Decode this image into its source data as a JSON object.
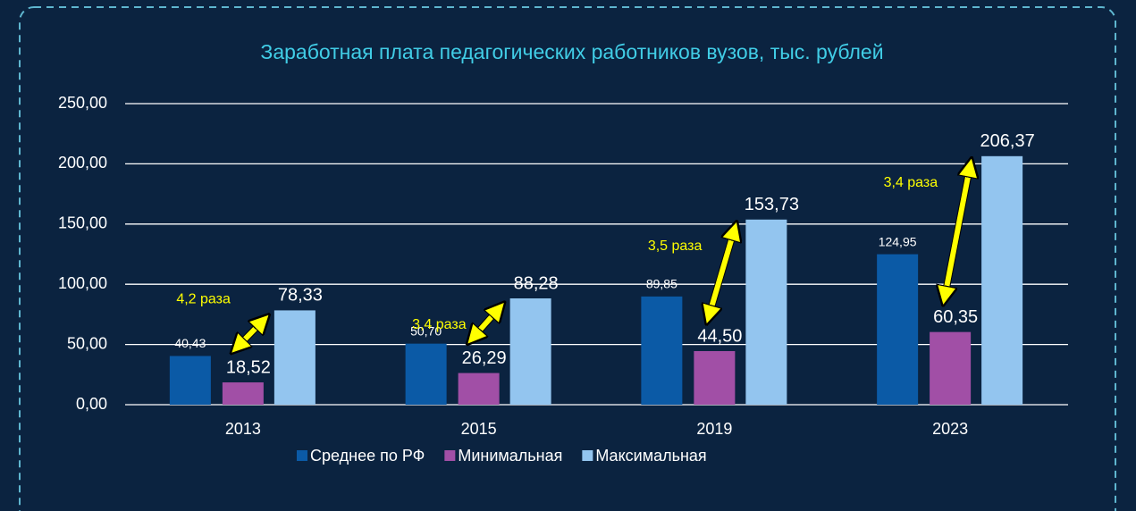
{
  "chart_data": {
    "type": "bar",
    "title": "Заработная плата педагогических работников вузов, тыс. рублей",
    "categories": [
      "2013",
      "2015",
      "2019",
      "2023"
    ],
    "series": [
      {
        "name": "Среднее по РФ",
        "color": "#0b5aa6",
        "values": [
          40.43,
          50.7,
          89.85,
          124.95
        ],
        "value_labels": [
          "40,43",
          "50,70",
          "89,85",
          "124,95"
        ]
      },
      {
        "name": "Минимальная",
        "color": "#a14fa6",
        "values": [
          18.52,
          26.29,
          44.5,
          60.35
        ],
        "value_labels": [
          "18,52",
          "26,29",
          "44,50",
          "60,35"
        ]
      },
      {
        "name": "Максимальная",
        "color": "#93c5ef",
        "values": [
          78.33,
          88.28,
          153.73,
          206.37
        ],
        "value_labels": [
          "78,33",
          "88,28",
          "153,73",
          "206,37"
        ]
      }
    ],
    "ratio_labels": [
      "4,2 раза",
      "3,4 раза",
      "3,5 раза",
      "3,4 раза"
    ],
    "ylim": [
      0,
      250
    ],
    "yticks": [
      {
        "value": 0,
        "label": "0,00"
      },
      {
        "value": 50,
        "label": "50,00"
      },
      {
        "value": 100,
        "label": "100,00"
      },
      {
        "value": 150,
        "label": "150,00"
      },
      {
        "value": 200,
        "label": "200,00"
      },
      {
        "value": 250,
        "label": "250,00"
      }
    ],
    "grid": true,
    "legend": "bottom"
  }
}
